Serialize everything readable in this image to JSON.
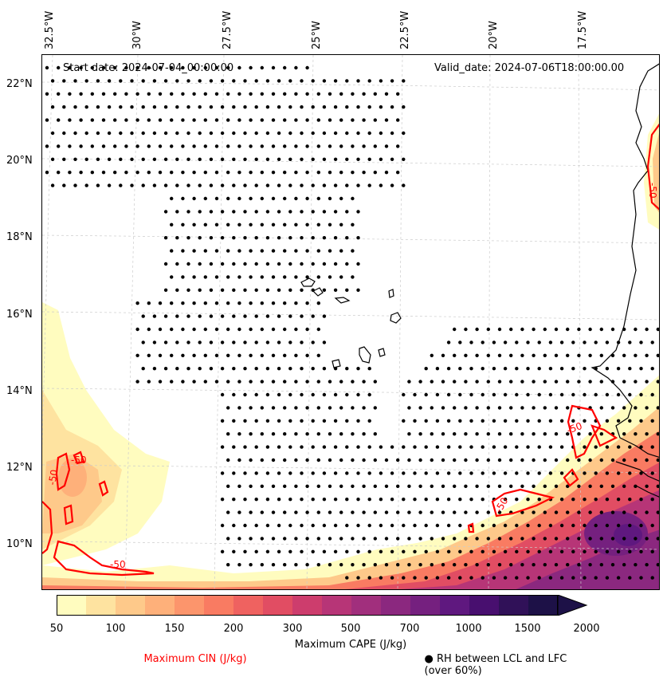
{
  "header": {
    "start_date": "Start date: 2024-07-04_00:00:00",
    "valid_date": "Valid_date: 2024-07-06T18:00:00.00"
  },
  "axes": {
    "longitude_labels": [
      "32.5°W",
      "30°W",
      "27.5°W",
      "25°W",
      "22.5°W",
      "20°W",
      "17.5°W"
    ],
    "latitude_labels": [
      "22°N",
      "20°N",
      "18°N",
      "16°N",
      "14°N",
      "12°N",
      "10°N"
    ]
  },
  "colorbar": {
    "title": "Maximum CAPE (J/kg)",
    "ticks": [
      "50",
      "100",
      "150",
      "200",
      "300",
      "500",
      "700",
      "1000",
      "1500",
      "2000"
    ],
    "colors": [
      "#fffcbf",
      "#fee3a0",
      "#fec98a",
      "#feb07a",
      "#fc956c",
      "#f97b62",
      "#ef6260",
      "#e14d63",
      "#cd3d6d",
      "#b73577",
      "#a12f7d",
      "#8b287f",
      "#75207f",
      "#5f187f",
      "#480f6f",
      "#301158",
      "#1d1147"
    ]
  },
  "contour_labels": [
    "-50",
    "-50",
    "-50",
    "-50",
    "-50",
    "-50"
  ],
  "legend": {
    "cin_label": "Maximum CIN (J/kg)",
    "cin_color": "#ff0000",
    "rh_label": "RH between LCL and LFC (over 60%)",
    "rh_marker": "●"
  }
}
